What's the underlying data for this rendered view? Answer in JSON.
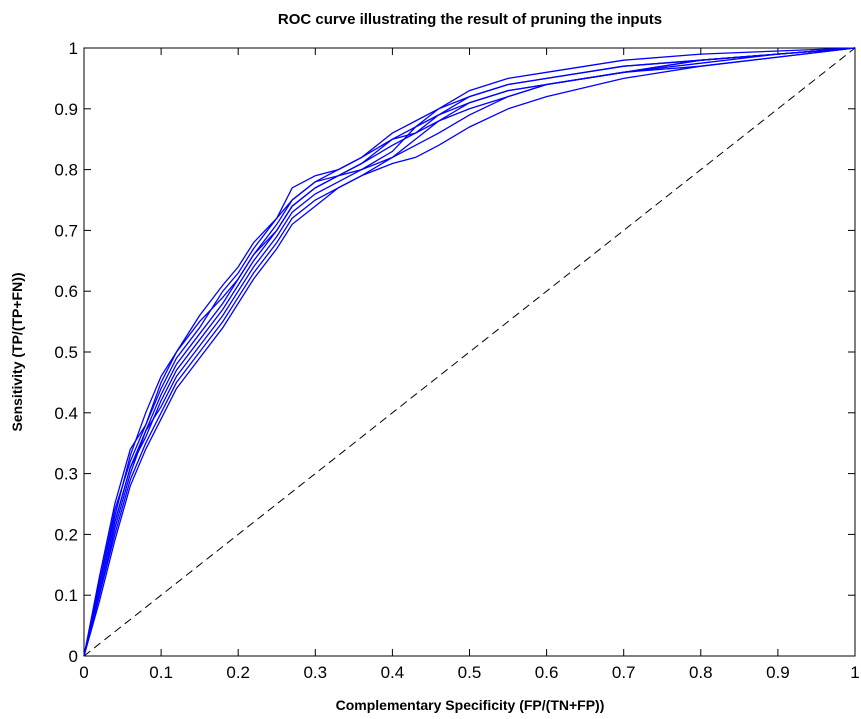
{
  "chart_data": {
    "type": "line",
    "title": "ROC curve illustrating the result of pruning the inputs",
    "xlabel": "Complementary Specificity (FP/(TN+FP))",
    "ylabel": "Sensitivity (TP/(TP+FN))",
    "xlim": [
      0,
      1
    ],
    "ylim": [
      0,
      1
    ],
    "xticks": [
      "0",
      "0.1",
      "0.2",
      "0.3",
      "0.4",
      "0.5",
      "0.6",
      "0.7",
      "0.8",
      "0.9",
      "1"
    ],
    "yticks": [
      "0",
      "0.1",
      "0.2",
      "0.3",
      "0.4",
      "0.5",
      "0.6",
      "0.7",
      "0.8",
      "0.9",
      "1"
    ],
    "grid": false,
    "legend": "none",
    "series_color": "#0000ff",
    "reference_color": "#000000",
    "reference_line": {
      "x": [
        0,
        1
      ],
      "y": [
        0,
        1
      ],
      "style": "dashed"
    },
    "series": [
      {
        "x": [
          0,
          0.02,
          0.04,
          0.06,
          0.08,
          0.1,
          0.12,
          0.15,
          0.18,
          0.2,
          0.22,
          0.25,
          0.27,
          0.3,
          0.33,
          0.36,
          0.4,
          0.43,
          0.46,
          0.5,
          0.55,
          0.6,
          0.7,
          0.8,
          0.9,
          1
        ],
        "y": [
          0,
          0.13,
          0.25,
          0.34,
          0.38,
          0.45,
          0.5,
          0.56,
          0.61,
          0.64,
          0.68,
          0.72,
          0.77,
          0.79,
          0.8,
          0.82,
          0.86,
          0.88,
          0.9,
          0.93,
          0.95,
          0.96,
          0.98,
          0.99,
          0.995,
          1
        ]
      },
      {
        "x": [
          0,
          0.02,
          0.04,
          0.06,
          0.08,
          0.1,
          0.12,
          0.15,
          0.18,
          0.2,
          0.22,
          0.25,
          0.27,
          0.3,
          0.33,
          0.36,
          0.4,
          0.43,
          0.46,
          0.5,
          0.55,
          0.6,
          0.7,
          0.8,
          0.9,
          1
        ],
        "y": [
          0,
          0.12,
          0.24,
          0.32,
          0.38,
          0.44,
          0.49,
          0.54,
          0.6,
          0.63,
          0.67,
          0.72,
          0.75,
          0.78,
          0.79,
          0.81,
          0.84,
          0.86,
          0.89,
          0.92,
          0.94,
          0.95,
          0.97,
          0.98,
          0.99,
          1
        ]
      },
      {
        "x": [
          0,
          0.02,
          0.04,
          0.06,
          0.08,
          0.1,
          0.12,
          0.15,
          0.18,
          0.2,
          0.22,
          0.25,
          0.27,
          0.3,
          0.33,
          0.36,
          0.4,
          0.43,
          0.46,
          0.5,
          0.55,
          0.6,
          0.7,
          0.8,
          0.9,
          1
        ],
        "y": [
          0,
          0.11,
          0.22,
          0.31,
          0.36,
          0.42,
          0.47,
          0.52,
          0.57,
          0.61,
          0.65,
          0.7,
          0.74,
          0.77,
          0.79,
          0.8,
          0.83,
          0.87,
          0.9,
          0.92,
          0.94,
          0.95,
          0.97,
          0.98,
          0.99,
          1
        ]
      },
      {
        "x": [
          0,
          0.02,
          0.04,
          0.06,
          0.08,
          0.1,
          0.12,
          0.15,
          0.18,
          0.2,
          0.22,
          0.25,
          0.27,
          0.3,
          0.33,
          0.36,
          0.4,
          0.43,
          0.46,
          0.5,
          0.55,
          0.6,
          0.7,
          0.8,
          0.9,
          1
        ],
        "y": [
          0,
          0.1,
          0.21,
          0.3,
          0.37,
          0.41,
          0.46,
          0.51,
          0.56,
          0.6,
          0.64,
          0.69,
          0.73,
          0.76,
          0.78,
          0.8,
          0.82,
          0.85,
          0.88,
          0.91,
          0.93,
          0.94,
          0.96,
          0.98,
          0.99,
          1
        ]
      },
      {
        "x": [
          0,
          0.02,
          0.04,
          0.06,
          0.08,
          0.1,
          0.12,
          0.15,
          0.18,
          0.2,
          0.22,
          0.25,
          0.27,
          0.3,
          0.33,
          0.36,
          0.4,
          0.43,
          0.46,
          0.5,
          0.55,
          0.6,
          0.7,
          0.8,
          0.9,
          1
        ],
        "y": [
          0,
          0.12,
          0.23,
          0.33,
          0.4,
          0.46,
          0.5,
          0.55,
          0.59,
          0.62,
          0.66,
          0.7,
          0.74,
          0.77,
          0.79,
          0.81,
          0.85,
          0.87,
          0.89,
          0.91,
          0.93,
          0.94,
          0.96,
          0.97,
          0.985,
          1
        ]
      },
      {
        "x": [
          0,
          0.02,
          0.04,
          0.06,
          0.08,
          0.1,
          0.12,
          0.15,
          0.18,
          0.2,
          0.22,
          0.25,
          0.27,
          0.3,
          0.33,
          0.36,
          0.4,
          0.43,
          0.46,
          0.5,
          0.55,
          0.6,
          0.7,
          0.8,
          0.9,
          1
        ],
        "y": [
          0,
          0.1,
          0.2,
          0.29,
          0.35,
          0.4,
          0.45,
          0.5,
          0.55,
          0.59,
          0.63,
          0.68,
          0.72,
          0.75,
          0.77,
          0.79,
          0.81,
          0.82,
          0.84,
          0.87,
          0.9,
          0.92,
          0.95,
          0.97,
          0.985,
          1
        ]
      },
      {
        "x": [
          0,
          0.02,
          0.04,
          0.06,
          0.08,
          0.1,
          0.12,
          0.15,
          0.18,
          0.2,
          0.22,
          0.25,
          0.27,
          0.3,
          0.33,
          0.36,
          0.4,
          0.43,
          0.46,
          0.5,
          0.55,
          0.6,
          0.7,
          0.8,
          0.9,
          1
        ],
        "y": [
          0,
          0.11,
          0.22,
          0.31,
          0.37,
          0.43,
          0.48,
          0.53,
          0.58,
          0.62,
          0.66,
          0.71,
          0.75,
          0.78,
          0.8,
          0.82,
          0.85,
          0.86,
          0.88,
          0.9,
          0.92,
          0.94,
          0.96,
          0.975,
          0.99,
          1
        ]
      },
      {
        "x": [
          0,
          0.02,
          0.04,
          0.06,
          0.08,
          0.1,
          0.12,
          0.15,
          0.18,
          0.2,
          0.22,
          0.25,
          0.27,
          0.3,
          0.33,
          0.36,
          0.4,
          0.43,
          0.46,
          0.5,
          0.55,
          0.6,
          0.7,
          0.8,
          0.9,
          1
        ],
        "y": [
          0,
          0.09,
          0.19,
          0.28,
          0.34,
          0.39,
          0.44,
          0.49,
          0.54,
          0.58,
          0.62,
          0.67,
          0.71,
          0.74,
          0.77,
          0.79,
          0.82,
          0.84,
          0.86,
          0.89,
          0.92,
          0.94,
          0.96,
          0.98,
          0.99,
          1
        ]
      }
    ]
  }
}
